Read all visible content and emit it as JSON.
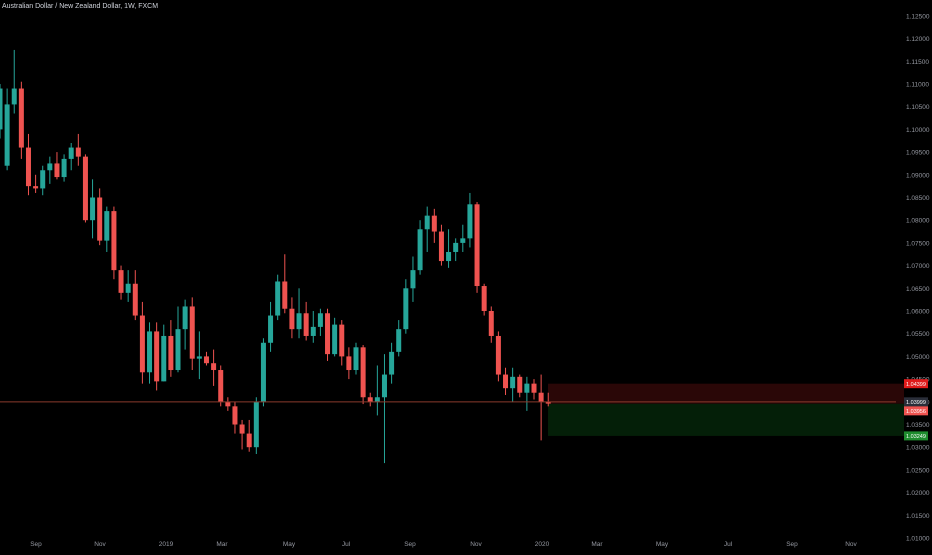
{
  "header": {
    "symbol_name": "Australian Dollar / New Zealand Dollar",
    "interval": "1W",
    "exchange": "FXCM"
  },
  "colors": {
    "background": "#000000",
    "up": "#26a69a",
    "down": "#ef5350",
    "axis_text": "#9598a1",
    "price_line": "#8a3b2c",
    "stop_zone": "#2a0707",
    "target_zone": "#041f08",
    "stop_label": "#e01b1b",
    "current_label": "#2a2e39",
    "entry_label": "#ef5350",
    "target_label": "#1e8c2e"
  },
  "price_labels": {
    "stop": "1.04399",
    "current": "1.03999",
    "entry": "1.03956",
    "target": "1.03249"
  },
  "chart_data": {
    "type": "candlestick",
    "title": "Australian Dollar / New Zealand Dollar, 1W, FXCM",
    "x_labels": [
      "Sep",
      "Nov",
      "2019",
      "Mar",
      "May",
      "Jul",
      "Sep",
      "Nov",
      "2020",
      "Mar",
      "May",
      "Jul",
      "Sep",
      "Nov"
    ],
    "y_ticks": [
      "1.12500",
      "1.12000",
      "1.11500",
      "1.11000",
      "1.10500",
      "1.10000",
      "1.09500",
      "1.09000",
      "1.08500",
      "1.08000",
      "1.07500",
      "1.07000",
      "1.06500",
      "1.06000",
      "1.05500",
      "1.05000",
      "1.04500",
      "1.04000",
      "1.03500",
      "1.03000",
      "1.02500",
      "1.02000",
      "1.01500",
      "1.01000"
    ],
    "ylim": [
      1.01,
      1.1285
    ],
    "candles": [
      [
        1.1,
        1.11,
        1.098,
        1.109
      ],
      [
        1.092,
        1.109,
        1.091,
        1.1055
      ],
      [
        1.1055,
        1.1175,
        1.1035,
        1.109
      ],
      [
        1.109,
        1.1105,
        1.0935,
        1.096
      ],
      [
        1.096,
        1.099,
        1.0855,
        1.0875
      ],
      [
        1.0875,
        1.09,
        1.086,
        1.087
      ],
      [
        1.087,
        1.092,
        1.0855,
        1.091
      ],
      [
        1.091,
        1.094,
        1.088,
        1.0925
      ],
      [
        1.0925,
        1.095,
        1.089,
        1.0895
      ],
      [
        1.0895,
        1.0945,
        1.0885,
        1.0935
      ],
      [
        1.0935,
        1.097,
        1.091,
        1.096
      ],
      [
        1.096,
        1.099,
        1.092,
        1.094
      ],
      [
        1.094,
        1.0945,
        1.0795,
        1.08
      ],
      [
        1.08,
        1.089,
        1.076,
        1.085
      ],
      [
        1.085,
        1.087,
        1.0745,
        1.0755
      ],
      [
        1.0755,
        1.083,
        1.073,
        1.082
      ],
      [
        1.082,
        1.083,
        1.067,
        1.069
      ],
      [
        1.069,
        1.07,
        1.0625,
        1.064
      ],
      [
        1.064,
        1.069,
        1.062,
        1.066
      ],
      [
        1.066,
        1.069,
        1.058,
        1.059
      ],
      [
        1.059,
        1.062,
        1.044,
        1.0465
      ],
      [
        1.0465,
        1.0575,
        1.044,
        1.0555
      ],
      [
        1.0555,
        1.0575,
        1.0425,
        1.0445
      ],
      [
        1.0445,
        1.057,
        1.0445,
        1.0545
      ],
      [
        1.0545,
        1.058,
        1.0455,
        1.047
      ],
      [
        1.047,
        1.061,
        1.0465,
        1.056
      ],
      [
        1.056,
        1.0625,
        1.0515,
        1.061
      ],
      [
        1.061,
        1.063,
        1.047,
        1.0495
      ],
      [
        1.0495,
        1.0555,
        1.045,
        1.05
      ],
      [
        1.05,
        1.051,
        1.048,
        1.0485
      ],
      [
        1.0485,
        1.0515,
        1.0435,
        1.047
      ],
      [
        1.047,
        1.048,
        1.039,
        1.04
      ],
      [
        1.04,
        1.041,
        1.038,
        1.039
      ],
      [
        1.039,
        1.04,
        1.033,
        1.035
      ],
      [
        1.035,
        1.036,
        1.0295,
        1.033
      ],
      [
        1.033,
        1.036,
        1.029,
        1.03
      ],
      [
        1.03,
        1.041,
        1.0285,
        1.04
      ],
      [
        1.04,
        1.054,
        1.039,
        1.053
      ],
      [
        1.053,
        1.062,
        1.051,
        1.059
      ],
      [
        1.059,
        1.068,
        1.058,
        1.0665
      ],
      [
        1.0665,
        1.0725,
        1.0595,
        1.0605
      ],
      [
        1.0605,
        1.063,
        1.054,
        1.056
      ],
      [
        1.056,
        1.065,
        1.054,
        1.0595
      ],
      [
        1.0595,
        1.062,
        1.0535,
        1.0545
      ],
      [
        1.0545,
        1.06,
        1.053,
        1.0565
      ],
      [
        1.0565,
        1.0605,
        1.0545,
        1.0595
      ],
      [
        1.0595,
        1.0605,
        1.049,
        1.0505
      ],
      [
        1.0505,
        1.0585,
        1.05,
        1.057
      ],
      [
        1.057,
        1.058,
        1.048,
        1.05
      ],
      [
        1.05,
        1.052,
        1.045,
        1.047
      ],
      [
        1.047,
        1.053,
        1.046,
        1.052
      ],
      [
        1.052,
        1.0525,
        1.0395,
        1.041
      ],
      [
        1.041,
        1.042,
        1.039,
        1.04
      ],
      [
        1.04,
        1.048,
        1.037,
        1.041
      ],
      [
        1.041,
        1.0505,
        1.0265,
        1.046
      ],
      [
        1.046,
        1.053,
        1.044,
        1.051
      ],
      [
        1.051,
        1.058,
        1.05,
        1.056
      ],
      [
        1.056,
        1.067,
        1.055,
        1.065
      ],
      [
        1.065,
        1.072,
        1.062,
        1.069
      ],
      [
        1.069,
        1.08,
        1.068,
        1.078
      ],
      [
        1.078,
        1.083,
        1.073,
        1.081
      ],
      [
        1.081,
        1.0825,
        1.075,
        1.0775
      ],
      [
        1.0775,
        1.079,
        1.07,
        1.071
      ],
      [
        1.071,
        1.078,
        1.0695,
        1.073
      ],
      [
        1.073,
        1.076,
        1.071,
        1.075
      ],
      [
        1.075,
        1.079,
        1.073,
        1.076
      ],
      [
        1.076,
        1.086,
        1.074,
        1.0835
      ],
      [
        1.0835,
        1.084,
        1.064,
        1.0655
      ],
      [
        1.0655,
        1.066,
        1.059,
        1.06
      ],
      [
        1.06,
        1.061,
        1.053,
        1.0545
      ],
      [
        1.0545,
        1.0555,
        1.0445,
        1.046
      ],
      [
        1.046,
        1.0475,
        1.0415,
        1.043
      ],
      [
        1.043,
        1.0475,
        1.04,
        1.0455
      ],
      [
        1.0455,
        1.046,
        1.041,
        1.042
      ],
      [
        1.042,
        1.0455,
        1.038,
        1.044
      ],
      [
        1.044,
        1.045,
        1.0405,
        1.042
      ],
      [
        1.042,
        1.046,
        1.0315,
        1.04
      ],
      [
        1.04,
        1.042,
        1.039,
        1.0396
      ]
    ],
    "position": {
      "stop": 1.04399,
      "entry": 1.03956,
      "target": 1.03249,
      "current": 1.03999
    },
    "grid": false,
    "legend": "none"
  }
}
